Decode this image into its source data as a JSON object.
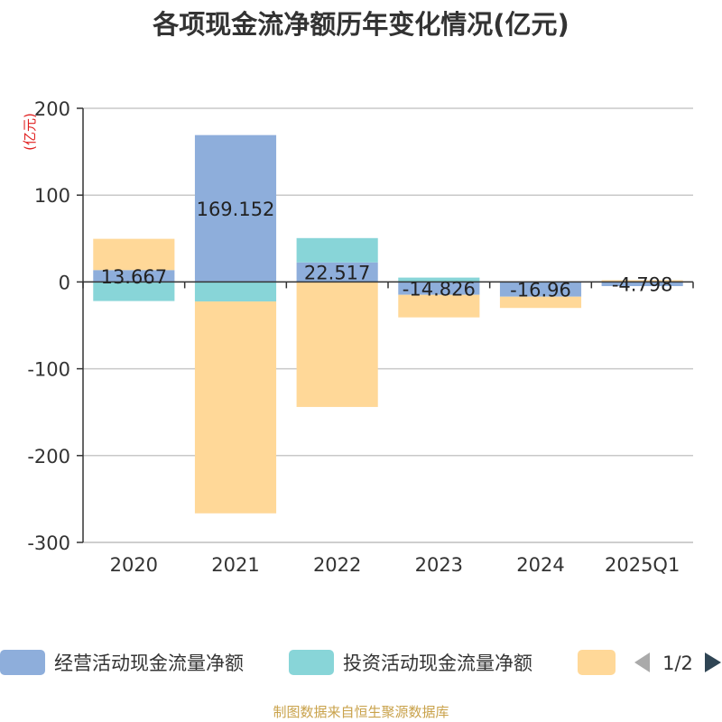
{
  "chart_data": {
    "type": "bar",
    "stacked": true,
    "title": "各项现金流净额历年变化情况(亿元)",
    "ylabel": "(亿元)",
    "ylim": [
      -300,
      200
    ],
    "yticks": [
      200,
      100,
      0,
      -100,
      -200,
      -300
    ],
    "grid": true,
    "categories": [
      "2020",
      "2021",
      "2022",
      "2023",
      "2024",
      "2025Q1"
    ],
    "series": [
      {
        "name": "经营活动现金流量净额",
        "color": "#8eaedb",
        "values": [
          13.667,
          169.152,
          22.517,
          -14.826,
          -16.96,
          -4.798
        ]
      },
      {
        "name": "投资活动现金流量净额",
        "color": "#88d5d8",
        "values": [
          -22,
          -22.5,
          28,
          5,
          0,
          0
        ]
      },
      {
        "name": "",
        "color": "#ffd898",
        "values": [
          36,
          -244,
          -144,
          -26,
          -13,
          2
        ]
      }
    ],
    "data_labels": [
      "13.667",
      "169.152",
      "22.517",
      "-14.826",
      "-16.96",
      "-4.798"
    ],
    "legend_position": "bottom",
    "legend_page": "1/2"
  },
  "icons": {
    "prev": "triangle-left-icon",
    "next": "triangle-right-icon"
  },
  "source": "制图数据来自恒生聚源数据库"
}
